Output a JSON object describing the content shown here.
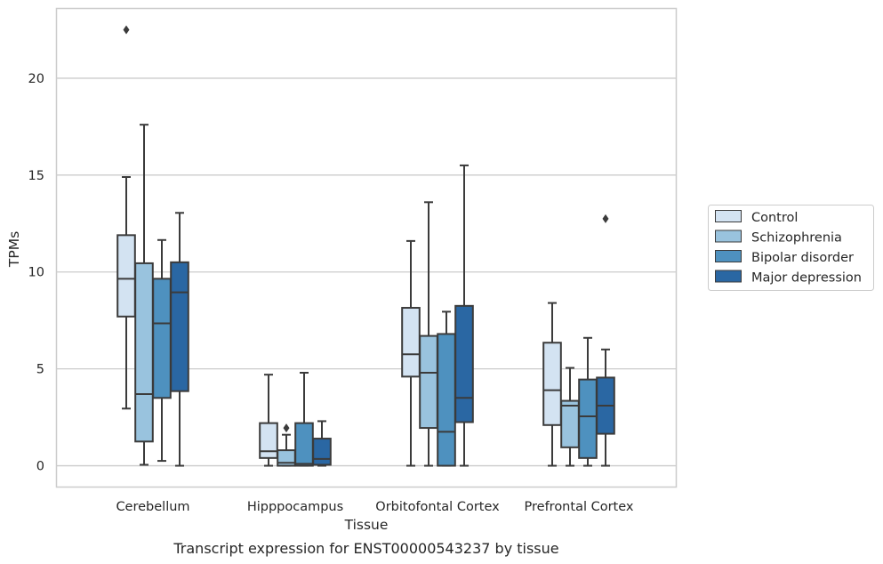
{
  "caption": "Transcript expression for ENST00000543237 by tissue",
  "chart_data": {
    "type": "box",
    "xlabel": "Tissue",
    "ylabel": "TPMs",
    "ylim": [
      -1.1,
      23.6
    ],
    "yticks": [
      0,
      5,
      10,
      15,
      20
    ],
    "grid": "horizontal",
    "legend_position": "right",
    "categories": [
      "Cerebellum",
      "Hipppocampus",
      "Orbitofontal Cortex",
      "Prefrontal Cortex"
    ],
    "series": [
      {
        "name": "Control",
        "color": "#d3e3f2",
        "boxes": [
          {
            "whisker_low": 2.95,
            "q1": 7.7,
            "median": 9.65,
            "q3": 11.9,
            "whisker_high": 14.9,
            "outliers": [
              22.5
            ]
          },
          {
            "whisker_low": 0.0,
            "q1": 0.4,
            "median": 0.75,
            "q3": 2.2,
            "whisker_high": 4.7,
            "outliers": []
          },
          {
            "whisker_low": 0.0,
            "q1": 4.6,
            "median": 5.75,
            "q3": 8.15,
            "whisker_high": 11.6,
            "outliers": []
          },
          {
            "whisker_low": 0.0,
            "q1": 2.1,
            "median": 3.9,
            "q3": 6.35,
            "whisker_high": 8.4,
            "outliers": []
          }
        ]
      },
      {
        "name": "Schizophrenia",
        "color": "#99c3de",
        "boxes": [
          {
            "whisker_low": 0.05,
            "q1": 1.25,
            "median": 3.7,
            "q3": 10.45,
            "whisker_high": 17.6,
            "outliers": []
          },
          {
            "whisker_low": 0.0,
            "q1": 0.0,
            "median": 0.15,
            "q3": 0.8,
            "whisker_high": 1.6,
            "outliers": [
              1.95
            ]
          },
          {
            "whisker_low": 0.0,
            "q1": 1.95,
            "median": 4.8,
            "q3": 6.7,
            "whisker_high": 13.6,
            "outliers": []
          },
          {
            "whisker_low": 0.0,
            "q1": 0.95,
            "median": 3.1,
            "q3": 3.35,
            "whisker_high": 5.05,
            "outliers": []
          }
        ]
      },
      {
        "name": "Bipolar disorder",
        "color": "#4e91bf",
        "boxes": [
          {
            "whisker_low": 0.25,
            "q1": 3.5,
            "median": 7.35,
            "q3": 9.65,
            "whisker_high": 11.65,
            "outliers": []
          },
          {
            "whisker_low": 0.0,
            "q1": 0.0,
            "median": 0.1,
            "q3": 2.2,
            "whisker_high": 4.8,
            "outliers": []
          },
          {
            "whisker_low": 0.0,
            "q1": 0.0,
            "median": 1.75,
            "q3": 6.8,
            "whisker_high": 7.95,
            "outliers": []
          },
          {
            "whisker_low": 0.0,
            "q1": 0.4,
            "median": 2.55,
            "q3": 4.45,
            "whisker_high": 6.6,
            "outliers": []
          }
        ]
      },
      {
        "name": "Major depression",
        "color": "#2a67a3",
        "boxes": [
          {
            "whisker_low": 0.0,
            "q1": 3.85,
            "median": 8.95,
            "q3": 10.5,
            "whisker_high": 13.05,
            "outliers": []
          },
          {
            "whisker_low": 0.0,
            "q1": 0.05,
            "median": 0.35,
            "q3": 1.4,
            "whisker_high": 2.3,
            "outliers": []
          },
          {
            "whisker_low": 0.0,
            "q1": 2.25,
            "median": 3.5,
            "q3": 8.25,
            "whisker_high": 15.5,
            "outliers": []
          },
          {
            "whisker_low": 0.0,
            "q1": 1.65,
            "median": 3.1,
            "q3": 4.55,
            "whisker_high": 6.0,
            "outliers": [
              12.75
            ]
          }
        ]
      }
    ]
  }
}
